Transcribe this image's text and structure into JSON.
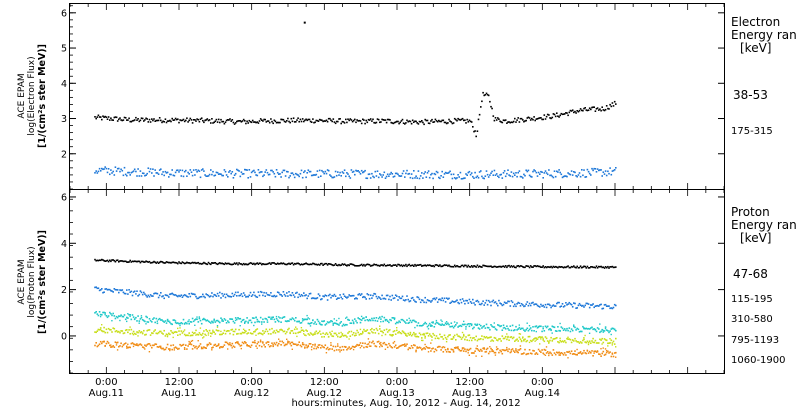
{
  "chart_data": [
    {
      "type": "scatter",
      "ylabel_lines": [
        "ACE EPAM",
        "log(Electron Flux)",
        "[1/(cm²s ster MeV)]"
      ],
      "ylim": [
        1.0,
        6.25
      ],
      "yticks": [
        2,
        3,
        4,
        5,
        6
      ],
      "legend_title_lines": [
        "Electron",
        "Energy ran",
        "[keV]"
      ],
      "annotations": [
        {
          "x": 32.6,
          "y": 5.75,
          "text": ""
        }
      ],
      "series": [
        {
          "name": "38-53",
          "color": "#000000",
          "points": [
            [
              -2,
              3.05
            ],
            [
              4,
              2.98
            ],
            [
              10,
              2.98
            ],
            [
              16,
              2.96
            ],
            [
              22,
              2.93
            ],
            [
              28,
              2.96
            ],
            [
              34,
              2.97
            ],
            [
              40,
              2.94
            ],
            [
              46,
              2.95
            ],
            [
              52,
              2.92
            ],
            [
              57,
              2.95
            ],
            [
              60,
              2.95
            ],
            [
              61,
              2.55
            ],
            [
              62,
              3.7
            ],
            [
              63,
              3.65
            ],
            [
              64,
              3.0
            ],
            [
              66,
              2.95
            ],
            [
              70,
              3.02
            ],
            [
              74,
              3.1
            ],
            [
              78,
              3.25
            ],
            [
              82,
              3.3
            ],
            [
              84,
              3.45
            ]
          ]
        },
        {
          "name": "175-315",
          "color": "#1e78d8",
          "points": [
            [
              -2,
              1.55
            ],
            [
              10,
              1.48
            ],
            [
              20,
              1.46
            ],
            [
              30,
              1.45
            ],
            [
              40,
              1.45
            ],
            [
              50,
              1.44
            ],
            [
              60,
              1.43
            ],
            [
              70,
              1.45
            ],
            [
              80,
              1.48
            ],
            [
              84,
              1.52
            ]
          ]
        }
      ]
    },
    {
      "type": "scatter",
      "ylabel_lines": [
        "ACE EPAM",
        "log(Proton Flux)",
        "[1/(cm²s ster MeV)]"
      ],
      "ylim": [
        -1.6,
        6.3
      ],
      "yticks": [
        0,
        2,
        4,
        6
      ],
      "legend_title_lines": [
        "Proton",
        "Energy ran",
        "[keV]"
      ],
      "series": [
        {
          "name": "47-68",
          "color": "#000000",
          "points": [
            [
              -2,
              3.3
            ],
            [
              10,
              3.2
            ],
            [
              20,
              3.15
            ],
            [
              30,
              3.15
            ],
            [
              40,
              3.1
            ],
            [
              50,
              3.08
            ],
            [
              60,
              3.05
            ],
            [
              70,
              3.02
            ],
            [
              84,
              3.0
            ]
          ]
        },
        {
          "name": "115-195",
          "color": "#1e78d8",
          "points": [
            [
              -2,
              2.05
            ],
            [
              10,
              1.75
            ],
            [
              20,
              1.8
            ],
            [
              30,
              1.85
            ],
            [
              36,
              1.7
            ],
            [
              44,
              1.75
            ],
            [
              52,
              1.6
            ],
            [
              60,
              1.5
            ],
            [
              70,
              1.4
            ],
            [
              84,
              1.3
            ]
          ]
        },
        {
          "name": "310-580",
          "color": "#1fc8c8",
          "points": [
            [
              -2,
              1.0
            ],
            [
              10,
              0.65
            ],
            [
              20,
              0.7
            ],
            [
              30,
              0.75
            ],
            [
              38,
              0.55
            ],
            [
              44,
              0.8
            ],
            [
              52,
              0.55
            ],
            [
              60,
              0.45
            ],
            [
              70,
              0.35
            ],
            [
              84,
              0.3
            ]
          ]
        },
        {
          "name": "795-1193",
          "color": "#c8de1a",
          "points": [
            [
              -2,
              0.3
            ],
            [
              10,
              0.15
            ],
            [
              20,
              0.2
            ],
            [
              30,
              0.25
            ],
            [
              38,
              0.05
            ],
            [
              44,
              0.25
            ],
            [
              52,
              0.05
            ],
            [
              60,
              -0.05
            ],
            [
              70,
              -0.1
            ],
            [
              84,
              -0.2
            ]
          ]
        },
        {
          "name": "1060-1900",
          "color": "#f08c14",
          "points": [
            [
              -2,
              -0.3
            ],
            [
              10,
              -0.45
            ],
            [
              20,
              -0.35
            ],
            [
              30,
              -0.3
            ],
            [
              38,
              -0.5
            ],
            [
              44,
              -0.3
            ],
            [
              52,
              -0.5
            ],
            [
              60,
              -0.6
            ],
            [
              70,
              -0.65
            ],
            [
              84,
              -0.75
            ]
          ]
        }
      ]
    }
  ],
  "xaxis": {
    "xlim": [
      -6,
      102
    ],
    "ticks": [
      {
        "x": 0,
        "time": "0:00",
        "date": "Aug.11"
      },
      {
        "x": 12,
        "time": "12:00",
        "date": "Aug.11"
      },
      {
        "x": 24,
        "time": "0:00",
        "date": "Aug.12"
      },
      {
        "x": 36,
        "time": "12:00",
        "date": "Aug.12"
      },
      {
        "x": 48,
        "time": "0:00",
        "date": "Aug.13"
      },
      {
        "x": 60,
        "time": "12:00",
        "date": "Aug.13"
      },
      {
        "x": 72,
        "time": "0:00",
        "date": "Aug.14"
      }
    ],
    "label": "hours:minutes, Aug. 10, 2012 - Aug. 14, 2012"
  }
}
